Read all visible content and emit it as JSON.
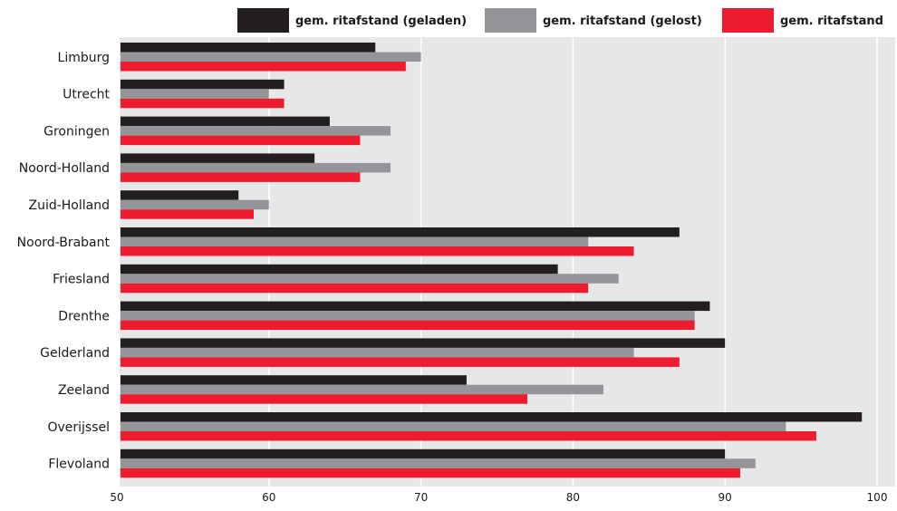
{
  "chart_data": {
    "type": "bar",
    "orientation": "horizontal",
    "categories": [
      "Limburg",
      "Utrecht",
      "Groningen",
      "Noord-Holland",
      "Zuid-Holland",
      "Noord-Brabant",
      "Friesland",
      "Drenthe",
      "Gelderland",
      "Zeeland",
      "Overijssel",
      "Flevoland"
    ],
    "series": [
      {
        "name": "gem. ritafstand (geladen)",
        "color": "#231f20",
        "values": [
          67,
          61,
          64,
          63,
          58,
          87,
          79,
          89,
          90,
          73,
          99,
          90
        ]
      },
      {
        "name": "gem. ritafstand (gelost)",
        "color": "#939598",
        "values": [
          70,
          60,
          68,
          68,
          60,
          81,
          83,
          88,
          84,
          82,
          94,
          92
        ]
      },
      {
        "name": "gem. ritafstand",
        "color": "#ed1c2e",
        "values": [
          69,
          61,
          66,
          66,
          59,
          84,
          81,
          88,
          87,
          77,
          96,
          91
        ]
      }
    ],
    "xlim": [
      50,
      100
    ],
    "xticks": [
      50,
      60,
      70,
      80,
      90,
      100
    ],
    "grid": true,
    "legend_position": "top-right",
    "plot_background": "#e6e7e8",
    "grid_color": "#ffffff"
  }
}
